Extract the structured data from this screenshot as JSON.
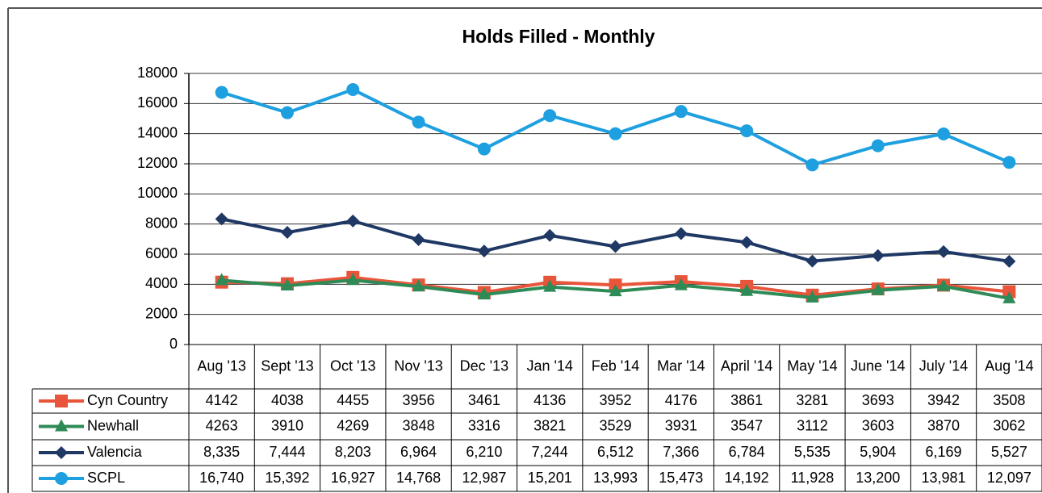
{
  "chart_data": {
    "type": "line",
    "title": "Holds Filled - Monthly",
    "categories": [
      "Aug '13",
      "Sept '13",
      "Oct '13",
      "Nov '13",
      "Dec '13",
      "Jan '14",
      "Feb '14",
      "Mar '14",
      "April '14",
      "May '14",
      "June '14",
      "July '14",
      "Aug '14"
    ],
    "ylim": [
      0,
      18000
    ],
    "yticks": [
      0,
      2000,
      4000,
      6000,
      8000,
      10000,
      12000,
      14000,
      16000,
      18000
    ],
    "grid": true,
    "series": [
      {
        "name": "Cyn Country",
        "color": "#e8553a",
        "marker": "square",
        "values": [
          4142,
          4038,
          4455,
          3956,
          3461,
          4136,
          3952,
          4176,
          3861,
          3281,
          3693,
          3942,
          3508
        ]
      },
      {
        "name": "Newhall",
        "color": "#2e8b57",
        "marker": "triangle",
        "values": [
          4263,
          3910,
          4269,
          3848,
          3316,
          3821,
          3529,
          3931,
          3547,
          3112,
          3603,
          3870,
          3062
        ]
      },
      {
        "name": "Valencia",
        "color": "#1f3864",
        "marker": "diamond",
        "values": [
          8335,
          7444,
          8203,
          6964,
          6210,
          7244,
          6512,
          7366,
          6784,
          5535,
          5904,
          6169,
          5527
        ],
        "value_labels": [
          "8,335",
          "7,444",
          "8,203",
          "6,964",
          "6,210",
          "7,244",
          "6,512",
          "7,366",
          "6,784",
          "5,535",
          "5,904",
          "6,169",
          "5,527"
        ]
      },
      {
        "name": "SCPL",
        "color": "#1ea0e0",
        "marker": "circle",
        "values": [
          16740,
          15392,
          16927,
          14768,
          12987,
          15201,
          13993,
          15473,
          14192,
          11928,
          13200,
          13981,
          12097
        ],
        "value_labels": [
          "16,740",
          "15,392",
          "16,927",
          "14,768",
          "12,987",
          "15,201",
          "13,993",
          "15,473",
          "14,192",
          "11,928",
          "13,200",
          "13,981",
          "12,097"
        ]
      }
    ]
  }
}
